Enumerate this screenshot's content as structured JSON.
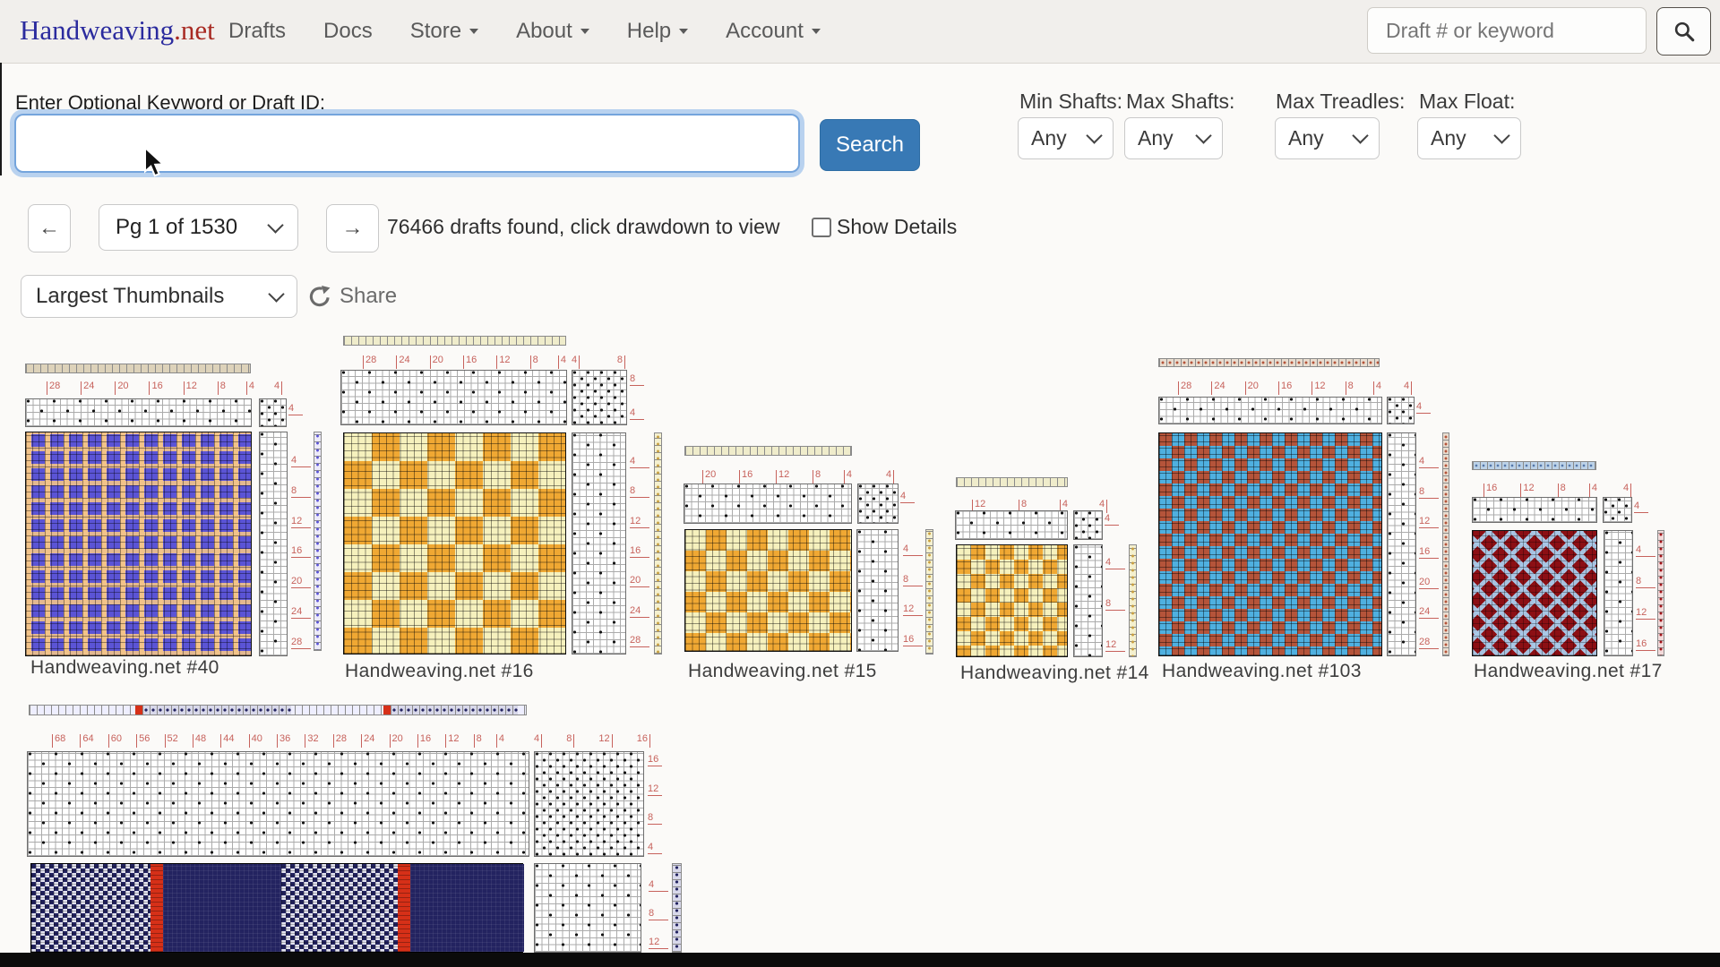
{
  "navbar": {
    "brand_primary": "Handweaving",
    "brand_suffix": ".net",
    "items": [
      {
        "label": "Drafts",
        "has_caret": false
      },
      {
        "label": "Docs",
        "has_caret": false
      },
      {
        "label": "Store",
        "has_caret": true
      },
      {
        "label": "About",
        "has_caret": true
      },
      {
        "label": "Help",
        "has_caret": true
      },
      {
        "label": "Account",
        "has_caret": true
      }
    ],
    "search": {
      "placeholder": "Draft # or keyword",
      "icon": "search-icon"
    }
  },
  "search_panel": {
    "label": "Enter Optional Keyword or Draft ID:",
    "input_value": "",
    "search_button": "Search",
    "filters": [
      {
        "label": "Min Shafts:",
        "value": "Any"
      },
      {
        "label": "Max Shafts:",
        "value": "Any"
      },
      {
        "label": "Max Treadles:",
        "value": "Any"
      },
      {
        "label": "Max Float:",
        "value": "Any"
      }
    ]
  },
  "pagination": {
    "prev": "←",
    "page_select": "Pg 1 of 1530",
    "next": "→",
    "results_text": "76466 drafts found, click drawdown to view",
    "show_details_label": "Show Details",
    "show_details_checked": false
  },
  "toolbar": {
    "thumbnail_size_select": "Largest Thumbnails",
    "share_label": "Share"
  },
  "drafts": [
    {
      "caption": "Handweaving.net #40",
      "colors": [
        "#5b54d6",
        "#f2c389"
      ],
      "top_numbers": [
        "28",
        "24",
        "20",
        "16",
        "12",
        "8",
        "4"
      ],
      "tieup_top": [
        "4"
      ],
      "tieup_side": [
        "4"
      ],
      "side_numbers": [
        "4",
        "8",
        "12",
        "16",
        "20",
        "24",
        "28"
      ]
    },
    {
      "caption": "Handweaving.net #16",
      "colors": [
        "#f0a833",
        "#f6f1bd"
      ],
      "top_numbers": [
        "28",
        "24",
        "20",
        "16",
        "12",
        "8",
        "4"
      ],
      "tieup_top": [
        "4",
        "8"
      ],
      "tieup_side": [
        "8",
        "4"
      ],
      "side_numbers": [
        "4",
        "8",
        "12",
        "16",
        "20",
        "24",
        "28"
      ]
    },
    {
      "caption": "Handweaving.net #15",
      "colors": [
        "#f0a833",
        "#f6f1bd"
      ],
      "top_numbers": [
        "20",
        "16",
        "12",
        "8",
        "4"
      ],
      "tieup_top": [
        "4"
      ],
      "tieup_side": [
        "4"
      ],
      "side_numbers": [
        "4",
        "8",
        "12",
        "16"
      ]
    },
    {
      "caption": "Handweaving.net #14",
      "colors": [
        "#f0a833",
        "#f6f1bd"
      ],
      "top_numbers": [
        "12",
        "8",
        "4"
      ],
      "tieup_top": [
        "4"
      ],
      "tieup_side": [
        "4"
      ],
      "side_numbers": [
        "4",
        "8",
        "12"
      ]
    },
    {
      "caption": "Handweaving.net #103",
      "colors": [
        "#4fb0e0",
        "#b5543a"
      ],
      "top_numbers": [
        "28",
        "24",
        "20",
        "16",
        "12",
        "8",
        "4"
      ],
      "tieup_top": [
        "4"
      ],
      "tieup_side": [
        "4"
      ],
      "side_numbers": [
        "4",
        "8",
        "12",
        "16",
        "20",
        "24",
        "28"
      ]
    },
    {
      "caption": "Handweaving.net #17",
      "colors": [
        "#8c0f14",
        "#aac9e8"
      ],
      "top_numbers": [
        "16",
        "12",
        "8",
        "4"
      ],
      "tieup_top": [
        "4"
      ],
      "tieup_side": [
        "4"
      ],
      "side_numbers": [
        "4",
        "8",
        "12",
        "16"
      ]
    },
    {
      "caption": "",
      "colors": [
        "#232360",
        "#e2e2ef",
        "#d63018"
      ],
      "top_numbers": [
        "68",
        "64",
        "60",
        "56",
        "52",
        "48",
        "44",
        "40",
        "36",
        "32",
        "28",
        "24",
        "20",
        "16",
        "12",
        "8",
        "4"
      ],
      "tieup_top": [
        "4",
        "8",
        "12",
        "16"
      ],
      "tieup_side": [
        "16",
        "12",
        "8",
        "4"
      ],
      "side_numbers": [
        "4",
        "8",
        "12"
      ]
    }
  ],
  "colors": {
    "accent_button": "#3879b5",
    "focus_ring": "#b9d2ef",
    "draft_number_red": "#c7625c",
    "navbar_bg": "#f1efec",
    "page_bg": "#fbfaf8",
    "bottom_bar": "#0b0b0b"
  }
}
